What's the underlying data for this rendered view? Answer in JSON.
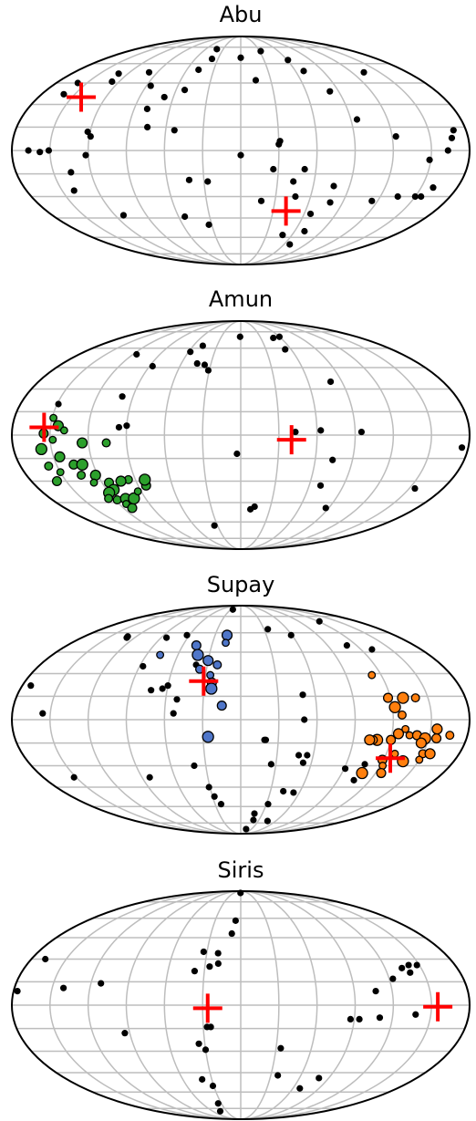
{
  "chart_data": [
    {
      "type": "scatter",
      "projection": "mollweide",
      "title": "Abu",
      "grid": true,
      "xlim_deg": [
        -180,
        180
      ],
      "ylim_deg": [
        -90,
        90
      ],
      "series": [
        {
          "role": "background",
          "color": "#000000",
          "points": [
            [
              -167,
              0
            ],
            [
              -158,
              -1
            ],
            [
              -151,
              0
            ],
            [
              -160,
              37
            ],
            [
              -159,
              45
            ],
            [
              -140,
              -26
            ],
            [
              -130,
              52
            ],
            [
              -127,
              46
            ],
            [
              -122,
              12
            ],
            [
              -112,
              -43
            ],
            [
              -122,
              -3
            ],
            [
              -119,
              9
            ],
            [
              -136,
              -14
            ],
            [
              -99,
              53
            ],
            [
              -86,
              43
            ],
            [
              -79,
              27
            ],
            [
              -41,
              73
            ],
            [
              -38,
              64
            ],
            [
              -47,
              55
            ],
            [
              -54,
              -44
            ],
            [
              -42,
              -19
            ],
            [
              -33,
              -50
            ],
            [
              -27,
              -20
            ],
            [
              0,
              65
            ],
            [
              0,
              -3
            ],
            [
              -68,
              35
            ],
            [
              -53,
              13
            ],
            [
              -75,
              15
            ],
            [
              -52,
              40
            ],
            [
              15,
              47
            ],
            [
              18,
              -33
            ],
            [
              26,
              -12
            ],
            [
              30,
              4
            ],
            [
              31,
              6
            ],
            [
              32,
              71
            ],
            [
              43,
              -20
            ],
            [
              47,
              -30
            ],
            [
              49,
              -58
            ],
            [
              51,
              -12
            ],
            [
              61,
              63
            ],
            [
              66,
              -42
            ],
            [
              68,
              -66
            ],
            [
              69,
              54
            ],
            [
              71,
              -55
            ],
            [
              77,
              -23
            ],
            [
              79,
              -34
            ],
            [
              82,
              39
            ],
            [
              95,
              20
            ],
            [
              115,
              -33
            ],
            [
              133,
              53
            ],
            [
              123,
              9
            ],
            [
              135,
              -30
            ],
            [
              150,
              -30
            ],
            [
              170,
              13
            ],
            [
              167,
              8
            ],
            [
              163,
              0
            ],
            [
              160,
              -24
            ],
            [
              155,
              -30
            ],
            [
              149,
              -6
            ]
          ]
        }
      ],
      "markers": [
        [
          -142,
          35
        ],
        [
          42,
          -40
        ]
      ]
    },
    {
      "type": "scatter",
      "projection": "mollweide",
      "title": "Amun",
      "grid": true,
      "xlim_deg": [
        -180,
        180
      ],
      "ylim_deg": [
        -90,
        90
      ],
      "series": [
        {
          "role": "background",
          "color": "#000000",
          "points": [
            [
              -149,
              20
            ],
            [
              -116,
              55
            ],
            [
              -87,
              46
            ],
            [
              -99,
              25
            ],
            [
              -96,
              5
            ],
            [
              -90,
              6
            ],
            [
              -58,
              57
            ],
            [
              -48,
              62
            ],
            [
              -44,
              48
            ],
            [
              -36,
              47
            ],
            [
              -31,
              43
            ],
            [
              -1,
              70
            ],
            [
              60,
              70
            ],
            [
              -34,
              -63
            ],
            [
              -3,
              -12
            ],
            [
              10,
              -50
            ],
            [
              14,
              -48
            ],
            [
              49,
              69
            ],
            [
              43,
              2
            ],
            [
              63,
              3
            ],
            [
              53,
              59
            ],
            [
              80,
              35
            ],
            [
              95,
              2
            ],
            [
              74,
              -16
            ],
            [
              70,
              -33
            ],
            [
              87,
              -49
            ],
            [
              175,
              -8
            ],
            [
              155,
              -35
            ]
          ]
        },
        {
          "role": "cluster",
          "color": "#2ca02c",
          "points": [
            [
              -149,
              11
            ],
            [
              -155,
              1
            ],
            [
              -158,
              -9
            ],
            [
              -157,
              -20
            ],
            [
              -145,
              -14
            ],
            [
              -148,
              -3
            ],
            [
              -136,
              -19
            ],
            [
              -129,
              -19
            ],
            [
              -134,
              -26
            ],
            [
              -122,
              -26
            ],
            [
              -127,
              -31
            ],
            [
              -114,
              -31
            ],
            [
              -114,
              -36
            ],
            [
              -118,
              -43
            ],
            [
              -109,
              -42
            ],
            [
              -113,
              -46
            ],
            [
              -111,
              -49
            ],
            [
              -101,
              -42
            ],
            [
              -96,
              -29
            ],
            [
              -103,
              -30
            ],
            [
              -93,
              -37
            ],
            [
              -83,
              -33
            ],
            [
              -82,
              -29
            ],
            [
              -106,
              -5
            ],
            [
              -125,
              -5
            ],
            [
              -150,
              -24
            ],
            [
              -158,
              -30
            ],
            [
              -120,
              -38
            ],
            [
              -125,
              -42
            ],
            [
              -144,
              6
            ],
            [
              -139,
              3
            ]
          ]
        }
      ],
      "markers": [
        [
          -155,
          5
        ],
        [
          40,
          -3
        ]
      ]
    },
    {
      "type": "scatter",
      "projection": "mollweide",
      "title": "Supay",
      "grid": true,
      "xlim_deg": [
        -180,
        180
      ],
      "ylim_deg": [
        -90,
        90
      ],
      "series": [
        {
          "role": "background",
          "color": "#000000",
          "points": [
            [
              -173,
              22
            ],
            [
              -156,
              4
            ],
            [
              -152,
              -38
            ],
            [
              -130,
              57
            ],
            [
              -129,
              56
            ],
            [
              -87,
              35
            ],
            [
              -84,
              56
            ],
            [
              -83,
              -38
            ],
            [
              -73,
              19
            ],
            [
              -60,
              22
            ],
            [
              -63,
              58
            ],
            [
              -64,
              20
            ],
            [
              -53,
              4
            ],
            [
              -51,
              13
            ],
            [
              -40,
              36
            ],
            [
              -40,
              -30
            ],
            [
              -31,
              -45
            ],
            [
              -28,
              -52
            ],
            [
              -23,
              -58
            ],
            [
              -24,
              83
            ],
            [
              20,
              -13
            ],
            [
              26,
              -29
            ],
            [
              35,
              63
            ],
            [
              48,
              -23
            ],
            [
              53,
              -28
            ],
            [
              50,
              16
            ],
            [
              55,
              -23
            ],
            [
              50,
              0
            ],
            [
              43,
              -48
            ],
            [
              54,
              -49
            ],
            [
              46,
              -73
            ],
            [
              19,
              -13
            ],
            [
              15,
              -82
            ],
            [
              19,
              -66
            ],
            [
              21,
              -72
            ],
            [
              32,
              -58
            ],
            [
              59,
              58
            ],
            [
              91,
              -32
            ],
            [
              105,
              -40
            ],
            [
              106,
              -29
            ],
            [
              110,
              50
            ],
            [
              131,
              47
            ],
            [
              122,
              70
            ]
          ]
        },
        {
          "role": "cluster",
          "color": "#4f76c9",
          "points": [
            [
              -77,
              43
            ],
            [
              -46,
              50
            ],
            [
              -41,
              43
            ],
            [
              -36,
              33
            ],
            [
              -30,
              39
            ],
            [
              -26,
              29
            ],
            [
              -24,
              24
            ],
            [
              -24,
              20
            ],
            [
              -21,
              36
            ],
            [
              -16,
              58
            ],
            [
              -16,
              52
            ],
            [
              -15,
              9
            ],
            [
              -26,
              -11
            ]
          ]
        },
        {
          "role": "cluster",
          "color": "#ff7f0e",
          "points": [
            [
              112,
              29
            ],
            [
              118,
              14
            ],
            [
              122,
              8
            ],
            [
              127,
              3
            ],
            [
              125,
              -9
            ],
            [
              134,
              -10
            ],
            [
              140,
              -10
            ],
            [
              147,
              -12
            ],
            [
              166,
              -10
            ],
            [
              155,
              -6
            ],
            [
              130,
              -6
            ],
            [
              120,
              -13
            ],
            [
              109,
              -13
            ],
            [
              106,
              -13
            ],
            [
              103,
              -13
            ],
            [
              127,
              -22
            ],
            [
              119,
              -26
            ],
            [
              137,
              -27
            ],
            [
              150,
              -22
            ],
            [
              156,
              -22
            ],
            [
              150,
              -26
            ],
            [
              156,
              -12
            ],
            [
              130,
              14
            ],
            [
              140,
              14
            ],
            [
              145,
              -15
            ],
            [
              122,
              -30
            ],
            [
              125,
              -35
            ],
            [
              108,
              -35
            ]
          ]
        }
      ],
      "markers": [
        [
          -31,
          25
        ],
        [
          125,
          -25
        ]
      ]
    },
    {
      "type": "scatter",
      "projection": "mollweide",
      "title": "Siris",
      "grid": true,
      "xlim_deg": [
        -180,
        180
      ],
      "ylim_deg": [
        -90,
        90
      ],
      "series": [
        {
          "role": "background",
          "color": "#000000",
          "points": [
            [
              -1,
              86
            ],
            [
              -6,
              58
            ],
            [
              -9,
              48
            ],
            [
              -19,
              27
            ],
            [
              -20,
              34
            ],
            [
              -26,
              25
            ],
            [
              -33,
              35
            ],
            [
              -38,
              22
            ],
            [
              -35,
              -25
            ],
            [
              -30,
              -29
            ],
            [
              -27,
              -14
            ],
            [
              -24,
              -14
            ],
            [
              -40,
              -50
            ],
            [
              -31,
              -55
            ],
            [
              -35,
              -70
            ],
            [
              -94,
              -18
            ],
            [
              -168,
              30
            ],
            [
              -141,
              11
            ],
            [
              -112,
              14
            ],
            [
              -177,
              9
            ],
            [
              -44,
              -78
            ],
            [
              34,
              -28
            ],
            [
              37,
              -47
            ],
            [
              68,
              -57
            ],
            [
              80,
              -49
            ],
            [
              87,
              -9
            ],
            [
              94,
              -9
            ],
            [
              110,
              -8
            ],
            [
              107,
              9
            ],
            [
              123,
              17
            ],
            [
              134,
              24
            ],
            [
              139,
              21
            ],
            [
              141,
              26
            ],
            [
              148,
              26
            ],
            [
              138,
              -6
            ]
          ]
        }
      ],
      "markers": [
        [
          -26,
          -2
        ],
        [
          155,
          -1
        ]
      ]
    }
  ]
}
